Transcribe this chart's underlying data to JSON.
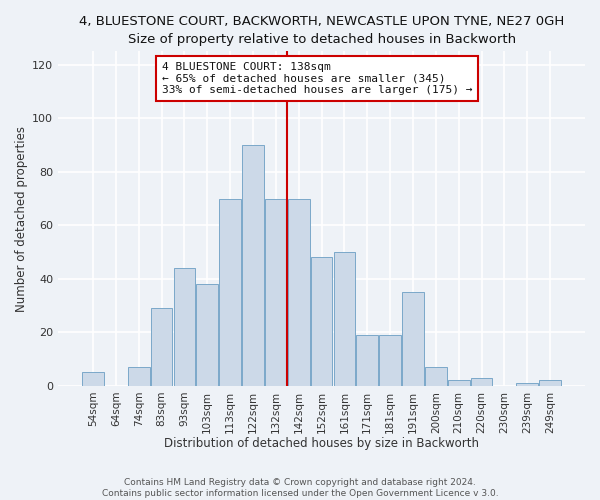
{
  "title": "4, BLUESTONE COURT, BACKWORTH, NEWCASTLE UPON TYNE, NE27 0GH",
  "subtitle": "Size of property relative to detached houses in Backworth",
  "xlabel": "Distribution of detached houses by size in Backworth",
  "ylabel": "Number of detached properties",
  "bar_labels": [
    "54sqm",
    "64sqm",
    "74sqm",
    "83sqm",
    "93sqm",
    "103sqm",
    "113sqm",
    "122sqm",
    "132sqm",
    "142sqm",
    "152sqm",
    "161sqm",
    "171sqm",
    "181sqm",
    "191sqm",
    "200sqm",
    "210sqm",
    "220sqm",
    "230sqm",
    "239sqm",
    "249sqm"
  ],
  "bar_values": [
    5,
    0,
    7,
    29,
    44,
    38,
    70,
    90,
    70,
    70,
    48,
    50,
    19,
    19,
    35,
    7,
    2,
    3,
    0,
    1,
    2
  ],
  "bar_color": "#ccd9e8",
  "bar_edge_color": "#7aa8c9",
  "red_line_index": 8,
  "annotation_line1": "4 BLUESTONE COURT: 138sqm",
  "annotation_line2": "← 65% of detached houses are smaller (345)",
  "annotation_line3": "33% of semi-detached houses are larger (175) →",
  "annotation_box_color": "#ffffff",
  "annotation_box_edge_color": "#cc0000",
  "red_line_color": "#cc0000",
  "ylim": [
    0,
    125
  ],
  "yticks": [
    0,
    20,
    40,
    60,
    80,
    100,
    120
  ],
  "footer1": "Contains HM Land Registry data © Crown copyright and database right 2024.",
  "footer2": "Contains public sector information licensed under the Open Government Licence v 3.0.",
  "bg_color": "#eef2f7",
  "plot_bg_color": "#eef2f7",
  "grid_color": "#ffffff",
  "title_fontsize": 9.5,
  "subtitle_fontsize": 9
}
